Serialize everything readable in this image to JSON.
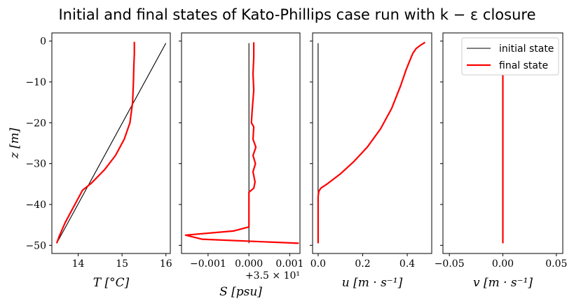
{
  "chart_data": {
    "type": "line",
    "title": "Initial and final states of Kato-Phillips case run with k − ε closure",
    "legend": {
      "placement": "top-right",
      "entries": [
        "initial state",
        "final state"
      ]
    },
    "series_colors": {
      "initial state": "#000000",
      "final state": "#ff0000"
    },
    "panels": [
      {
        "xlabel": "T [°C]",
        "ylabel": "z [m]",
        "xlim": [
          13.4,
          16.1
        ],
        "ylim": [
          -52,
          2
        ],
        "xticks": [
          14,
          15,
          16
        ],
        "yticks": [
          0,
          -10,
          -20,
          -30,
          -40,
          -50
        ],
        "yticklabels": [
          "0",
          "−10",
          "−20",
          "−30",
          "−40",
          "−50"
        ],
        "series": [
          {
            "name": "initial state",
            "x": [
              13.51,
              16.0
            ],
            "y": [
              -49.5,
              -0.5
            ]
          },
          {
            "name": "final state",
            "x": [
              13.51,
              13.56,
              13.7,
              13.9,
              14.1,
              14.3,
              14.6,
              14.85,
              15.05,
              15.18,
              15.24,
              15.26,
              15.27,
              15.28,
              15.28
            ],
            "y": [
              -49.5,
              -48,
              -44.5,
              -40.5,
              -36.5,
              -34.8,
              -31.5,
              -28,
              -24,
              -20,
              -15,
              -10,
              -6,
              -3,
              -0.2
            ]
          }
        ]
      },
      {
        "xlabel": "S [psu]",
        "offset_text": "+3.5 × 10¹",
        "xlim": [
          -0.00165,
          0.00125
        ],
        "ylim": [
          -52,
          2
        ],
        "xticks": [
          -0.001,
          0.0,
          0.001
        ],
        "xticklabels": [
          "−0.001",
          "0.000",
          "0.001"
        ],
        "series": [
          {
            "name": "initial state",
            "x": [
              0.0,
              0.0
            ],
            "y": [
              -49.5,
              -0.5
            ]
          },
          {
            "name": "final state",
            "x": [
              0.00122,
              -0.00115,
              -0.00155,
              -0.00038,
              0.0,
              0.0,
              0.0,
              0.00012,
              0.00015,
              0.0001,
              0.00016,
              0.0001,
              0.00017,
              0.0001,
              0.00012,
              6e-05,
              8e-05,
              0.00012,
              0.0001,
              0.00012,
              0.00012
            ],
            "y": [
              -49.5,
              -48.5,
              -47.5,
              -46.5,
              -45.5,
              -40,
              -37,
              -36,
              -34.5,
              -32,
              -30,
              -28,
              -26,
              -24,
              -21,
              -20,
              -17,
              -12,
              -8,
              -4,
              -0.3
            ]
          }
        ]
      },
      {
        "xlabel": "u [m · s⁻¹]",
        "xlim": [
          -0.025,
          0.51
        ],
        "ylim": [
          -52,
          2
        ],
        "xticks": [
          0.0,
          0.2,
          0.4
        ],
        "xticklabels": [
          "0.0",
          "0.2",
          "0.4"
        ],
        "series": [
          {
            "name": "initial state",
            "x": [
              0.0,
              0.0
            ],
            "y": [
              -49.5,
              -0.5
            ]
          },
          {
            "name": "final state",
            "x": [
              0.0,
              0.0,
              0.0,
              0.003,
              0.012,
              0.04,
              0.1,
              0.16,
              0.22,
              0.28,
              0.33,
              0.37,
              0.395,
              0.41,
              0.425,
              0.44,
              0.46,
              0.48
            ],
            "y": [
              -49.5,
              -42,
              -38,
              -36.8,
              -36,
              -35,
              -32.5,
              -29.5,
              -26,
              -21.5,
              -16.5,
              -11,
              -7,
              -5,
              -3,
              -1.8,
              -1,
              -0.3
            ]
          }
        ]
      },
      {
        "xlabel": "v [m · s⁻¹]",
        "xlim": [
          -0.056,
          0.056
        ],
        "ylim": [
          -52,
          2
        ],
        "xticks": [
          -0.05,
          0.0,
          0.05
        ],
        "xticklabels": [
          "−0.05",
          "0.00",
          "0.05"
        ],
        "series": [
          {
            "name": "initial state",
            "x": [
              0.0,
              0.0
            ],
            "y": [
              -49.5,
              -0.5
            ]
          },
          {
            "name": "final state",
            "x": [
              0.0,
              0.0
            ],
            "y": [
              -49.5,
              -0.5
            ]
          }
        ]
      }
    ]
  }
}
